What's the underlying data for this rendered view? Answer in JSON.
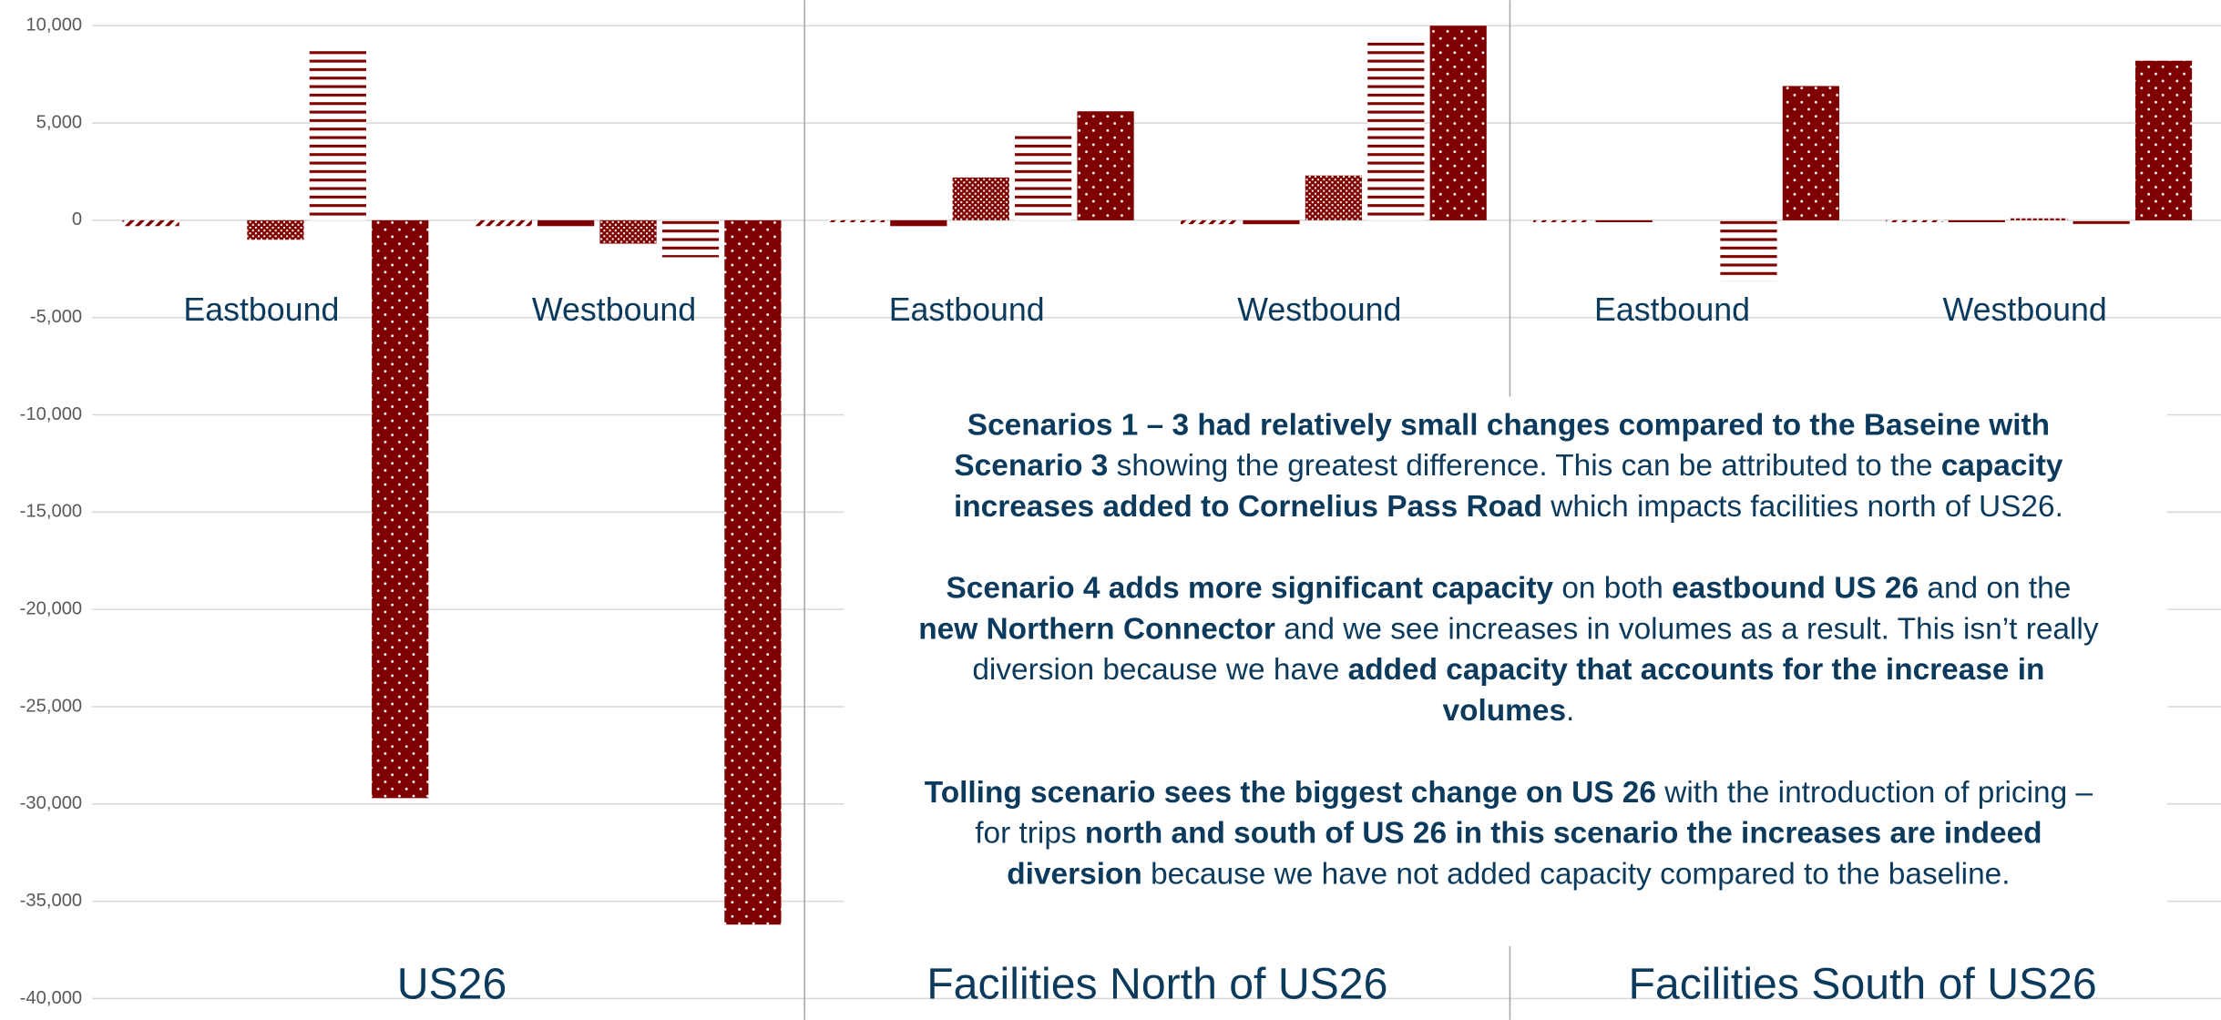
{
  "chart_data": {
    "type": "bar",
    "color": "#7f0000",
    "ylim": [
      -40000,
      10000
    ],
    "yticks": [
      {
        "value": 10000,
        "label": "10,000"
      },
      {
        "value": 5000,
        "label": "5,000"
      },
      0,
      {
        "value": -5000,
        "label": "-5,000"
      },
      {
        "value": -10000,
        "label": "-10,000"
      },
      {
        "value": -15000,
        "label": "-15,000"
      },
      {
        "value": -20000,
        "label": "-20,000"
      },
      {
        "value": -25000,
        "label": "-25,000"
      },
      {
        "value": -30000,
        "label": "-30,000"
      },
      {
        "value": -35000,
        "label": "-35,000"
      },
      {
        "value": -40000,
        "label": "-40,000"
      }
    ],
    "grid": true,
    "panels": [
      {
        "title": "US26",
        "categories": [
          "Eastbound",
          "Westbound"
        ],
        "series": [
          {
            "pattern": "diagonal",
            "values": [
              -300,
              -300
            ]
          },
          {
            "pattern": "solid",
            "values": [
              0,
              -300
            ]
          },
          {
            "pattern": "dense-dots",
            "values": [
              -1000,
              -1200
            ]
          },
          {
            "pattern": "horizontal",
            "values": [
              8900,
              -1900
            ]
          },
          {
            "pattern": "sparse-dots",
            "values": [
              -29700,
              -36200
            ]
          }
        ]
      },
      {
        "title": "Facilities North of US26",
        "categories": [
          "Eastbound",
          "Westbound"
        ],
        "series": [
          {
            "pattern": "diagonal",
            "values": [
              -100,
              -200
            ]
          },
          {
            "pattern": "solid",
            "values": [
              -300,
              -200
            ]
          },
          {
            "pattern": "dense-dots",
            "values": [
              2200,
              2300
            ]
          },
          {
            "pattern": "horizontal",
            "values": [
              4500,
              9300
            ]
          },
          {
            "pattern": "sparse-dots",
            "values": [
              5600,
              10000
            ]
          }
        ]
      },
      {
        "title": "Facilities South of US26",
        "categories": [
          "Eastbound",
          "Westbound"
        ],
        "series": [
          {
            "pattern": "diagonal",
            "values": [
              -100,
              -100
            ]
          },
          {
            "pattern": "solid",
            "values": [
              -100,
              -100
            ]
          },
          {
            "pattern": "dense-dots",
            "values": [
              0,
              100
            ]
          },
          {
            "pattern": "horizontal",
            "values": [
              -3100,
              -400
            ]
          },
          {
            "pattern": "sparse-dots",
            "values": [
              6900,
              8200
            ]
          }
        ]
      }
    ],
    "annotation": [
      [
        [
          {
            "text": "Scenarios 1 – 3 had relatively small changes compared to the Baseine with",
            "bold": true
          }
        ],
        [
          {
            "text": "Scenario 3",
            "bold": true
          },
          {
            "text": " showing the greatest difference. This can be attributed to the ",
            "bold": false
          },
          {
            "text": "capacity",
            "bold": true
          }
        ],
        [
          {
            "text": "increases added to Cornelius Pass Road",
            "bold": true
          },
          {
            "text": " which impacts facilities north of US26.",
            "bold": false
          }
        ]
      ],
      [
        [
          {
            "text": "Scenario 4 adds more significant capacity",
            "bold": true
          },
          {
            "text": " on both ",
            "bold": false
          },
          {
            "text": "eastbound US 26",
            "bold": true
          },
          {
            "text": " and on the",
            "bold": false
          }
        ],
        [
          {
            "text": "new Northern Connector",
            "bold": true
          },
          {
            "text": " and we see increases in volumes as a result. This isn’t really",
            "bold": false
          }
        ],
        [
          {
            "text": "diversion because we have ",
            "bold": false
          },
          {
            "text": "added capacity that accounts for the increase in",
            "bold": true
          }
        ],
        [
          {
            "text": "volumes",
            "bold": true
          },
          {
            "text": ".",
            "bold": false
          }
        ]
      ],
      [
        [
          {
            "text": "Tolling scenario sees the biggest change on US 26",
            "bold": true
          },
          {
            "text": " with the introduction of pricing –",
            "bold": false
          }
        ],
        [
          {
            "text": "for trips ",
            "bold": false
          },
          {
            "text": "north and south of US 26 in this scenario the increases are indeed",
            "bold": true
          }
        ],
        [
          {
            "text": "diversion",
            "bold": true
          },
          {
            "text": " because we have not added capacity compared to the baseline.",
            "bold": false
          }
        ]
      ]
    ]
  }
}
